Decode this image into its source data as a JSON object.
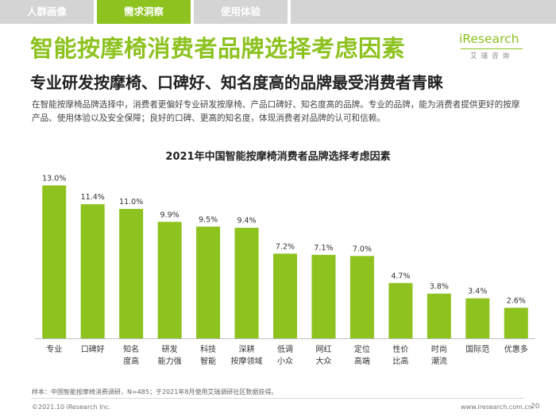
{
  "nav": {
    "tabs": [
      "人群画像",
      "需求洞察",
      "使用体验"
    ],
    "active_index": 1
  },
  "colors": {
    "accent": "#8dc21f",
    "tab_inactive": "#d4d4d4"
  },
  "logo": {
    "main": "iResearch",
    "sub": "艾瑞咨询"
  },
  "title": "智能按摩椅消费者品牌选择考虑因素",
  "subtitle": "专业研发按摩椅、口碑好、知名度高的品牌最受消费者青睐",
  "description": "在智能按摩椅品牌选择中，消费者更偏好专业研发按摩椅、产品口碑好、知名度高的品牌。专业的品牌，能为消费者提供更好的按摩产品、使用体验以及安全保障；良好的口碑、更高的知名度，体现消费者对品牌的认可和信赖。",
  "chart_title": "2021年中国智能按摩椅消费者品牌选择考虑因素",
  "chart_data": {
    "type": "bar",
    "title": "2021年中国智能按摩椅消费者品牌选择考虑因素",
    "categories": [
      [
        "专业"
      ],
      [
        "口碑好"
      ],
      [
        "知名",
        "度高"
      ],
      [
        "研发",
        "能力强"
      ],
      [
        "科技",
        "智能"
      ],
      [
        "深耕",
        "按摩领域"
      ],
      [
        "低调",
        "小众"
      ],
      [
        "网红",
        "大众"
      ],
      [
        "定位",
        "高端"
      ],
      [
        "性价",
        "比高"
      ],
      [
        "时尚",
        "潮流"
      ],
      [
        "国际范"
      ],
      [
        "优惠多"
      ]
    ],
    "values": [
      13.0,
      11.4,
      11.0,
      9.9,
      9.5,
      9.4,
      7.2,
      7.1,
      7.0,
      4.7,
      3.8,
      3.4,
      2.6
    ],
    "value_labels": [
      "13.0%",
      "11.4%",
      "11.0%",
      "9.9%",
      "9.5%",
      "9.4%",
      "7.2%",
      "7.1%",
      "7.0%",
      "4.7%",
      "3.8%",
      "3.4%",
      "2.6%"
    ],
    "unit": "%",
    "ylim": [
      0,
      13.5
    ],
    "grid": false,
    "color": "#8dc21f",
    "xlabel": "",
    "ylabel": ""
  },
  "footnote": "样本：中国智能按摩椅消费调研，N=485；于2021年8月使用艾瑞调研社区数据获得。",
  "footer": {
    "copyright": "©2021.10 iResearch Inc.",
    "website": "www.iresearch.com.cn",
    "page": "20"
  }
}
